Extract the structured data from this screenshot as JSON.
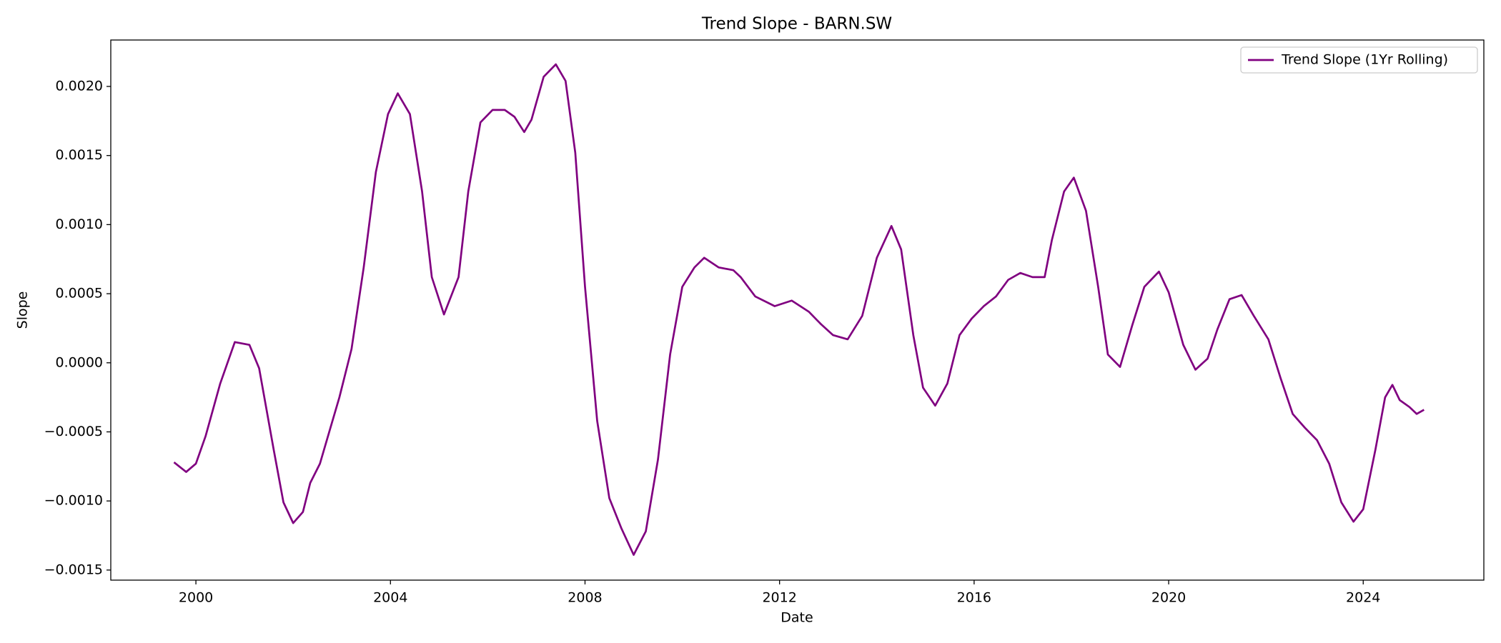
{
  "chart_data": {
    "type": "line",
    "title": "Trend Slope - BARN.SW",
    "x_label": "Date",
    "y_label": "Slope",
    "xlim": [
      1998.25,
      2026.48
    ],
    "ylim": [
      -0.001573,
      0.002336
    ],
    "xticks": [
      2000,
      2004,
      2008,
      2012,
      2016,
      2020,
      2024
    ],
    "yticks": [
      {
        "value": -0.0015,
        "label": "−0.0015"
      },
      {
        "value": -0.001,
        "label": "−0.0010"
      },
      {
        "value": -0.0005,
        "label": "−0.0005"
      },
      {
        "value": 0,
        "label": "0.0000"
      },
      {
        "value": 0.0005,
        "label": "0.0005"
      },
      {
        "value": 0.001,
        "label": "0.0010"
      },
      {
        "value": 0.0015,
        "label": "0.0015"
      },
      {
        "value": 0.002,
        "label": "0.0020"
      }
    ],
    "grid": false,
    "legend": "upper right",
    "x": [
      1999.55,
      1999.8,
      2000.0,
      2000.2,
      2000.5,
      2000.8,
      2001.1,
      2001.3,
      2001.6,
      2001.8,
      2002.0,
      2002.2,
      2002.35,
      2002.55,
      2002.75,
      2002.95,
      2003.2,
      2003.45,
      2003.7,
      2003.95,
      2004.15,
      2004.4,
      2004.65,
      2004.85,
      2005.1,
      2005.4,
      2005.6,
      2005.85,
      2006.1,
      2006.35,
      2006.55,
      2006.75,
      2006.9,
      2007.15,
      2007.4,
      2007.6,
      2007.8,
      2008.0,
      2008.25,
      2008.5,
      2008.75,
      2009.0,
      2009.25,
      2009.5,
      2009.75,
      2010.0,
      2010.25,
      2010.45,
      2010.75,
      2011.05,
      2011.2,
      2011.5,
      2011.9,
      2012.25,
      2012.6,
      2012.85,
      2013.1,
      2013.4,
      2013.7,
      2014.0,
      2014.3,
      2014.5,
      2014.75,
      2014.95,
      2015.2,
      2015.45,
      2015.7,
      2015.95,
      2016.2,
      2016.45,
      2016.7,
      2016.95,
      2017.2,
      2017.45,
      2017.6,
      2017.85,
      2018.05,
      2018.3,
      2018.55,
      2018.75,
      2019.0,
      2019.25,
      2019.5,
      2019.8,
      2020.0,
      2020.3,
      2020.55,
      2020.8,
      2021.0,
      2021.25,
      2021.5,
      2021.75,
      2022.05,
      2022.3,
      2022.55,
      2022.8,
      2023.05,
      2023.3,
      2023.55,
      2023.8,
      2024.0,
      2024.25,
      2024.45,
      2024.6,
      2024.75,
      2024.95,
      2025.1,
      2025.25
    ],
    "series": [
      {
        "name": "Trend Slope (1Yr Rolling)",
        "color": "#800080",
        "values": [
          -0.00072,
          -0.00079,
          -0.00073,
          -0.00053,
          -0.00015,
          0.00015,
          0.00013,
          -4e-05,
          -0.00063,
          -0.00101,
          -0.00116,
          -0.00108,
          -0.00087,
          -0.00073,
          -0.00049,
          -0.00025,
          0.0001,
          0.00069,
          0.00138,
          0.0018,
          0.00195,
          0.0018,
          0.00124,
          0.00062,
          0.00035,
          0.00062,
          0.00124,
          0.00174,
          0.00183,
          0.00183,
          0.00178,
          0.00167,
          0.00176,
          0.00207,
          0.00216,
          0.00204,
          0.00152,
          0.00055,
          -0.00042,
          -0.00098,
          -0.0012,
          -0.00139,
          -0.00122,
          -0.0007,
          6e-05,
          0.00055,
          0.00069,
          0.00076,
          0.00069,
          0.00067,
          0.00062,
          0.00048,
          0.00041,
          0.00045,
          0.00037,
          0.00028,
          0.0002,
          0.00017,
          0.00034,
          0.00076,
          0.00099,
          0.00082,
          0.0002,
          -0.00018,
          -0.00031,
          -0.00015,
          0.0002,
          0.00032,
          0.00041,
          0.00048,
          0.0006,
          0.00065,
          0.00062,
          0.00062,
          0.00089,
          0.00124,
          0.00134,
          0.0011,
          0.00055,
          6e-05,
          -3e-05,
          0.00027,
          0.00055,
          0.00066,
          0.00051,
          0.00013,
          -5e-05,
          3e-05,
          0.00024,
          0.00046,
          0.00049,
          0.00034,
          0.00017,
          -0.00011,
          -0.00037,
          -0.00047,
          -0.00056,
          -0.00073,
          -0.00101,
          -0.00115,
          -0.00106,
          -0.00063,
          -0.00025,
          -0.00016,
          -0.00027,
          -0.00032,
          -0.00037,
          -0.00034
        ]
      }
    ]
  }
}
